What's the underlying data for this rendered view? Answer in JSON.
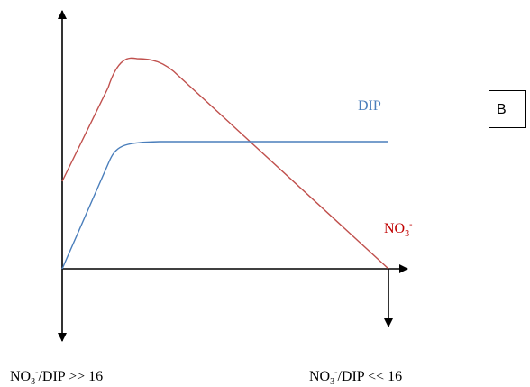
{
  "panel_label": "B",
  "series": {
    "dip": {
      "name": "DIP",
      "color": "#4a7ebb"
    },
    "no3": {
      "name": "NO",
      "sub": "3",
      "sup": "-",
      "color": "#c0504d"
    }
  },
  "captions": {
    "left": {
      "pre": "NO",
      "sub": "3",
      "sup": "-",
      "post": "/DIP >> 16"
    },
    "right": {
      "pre": "NO",
      "sub": "3",
      "sup": "-",
      "post": "/DIP << 16"
    }
  },
  "colors": {
    "axis": "#000000",
    "dip": "#4a7ebb",
    "no3": "#c0504d"
  }
}
